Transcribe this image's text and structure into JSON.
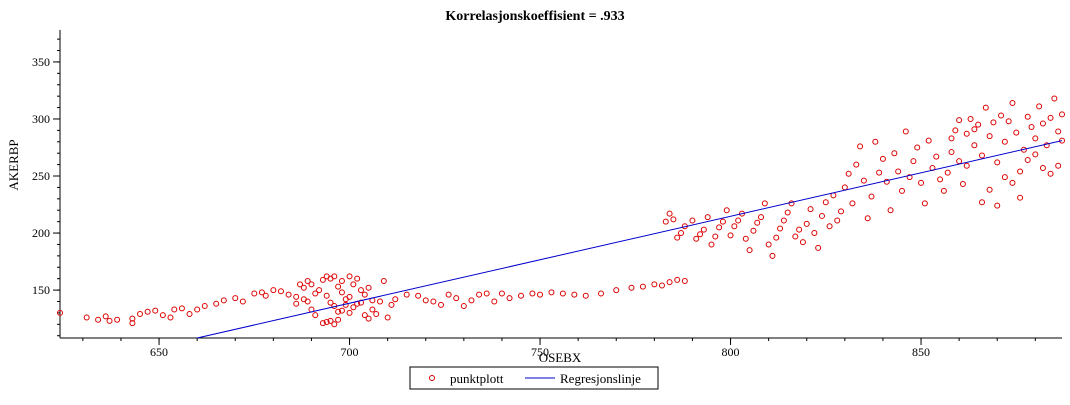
{
  "chart_data": {
    "type": "scatter",
    "title": "Korrelasjonskoeffisient = .933",
    "xlabel": "OSEBX",
    "ylabel": "AKERBP",
    "xlim": [
      624,
      887
    ],
    "ylim": [
      108,
      378
    ],
    "x_ticks": [
      650,
      700,
      750,
      800,
      850
    ],
    "y_ticks": [
      150,
      200,
      250,
      300,
      350
    ],
    "grid": false,
    "legend_position": "bottom-center",
    "colors": {
      "points": "#dd0000",
      "regression": "#0000cc",
      "axis": "#000000"
    },
    "series": [
      {
        "name": "punktplott",
        "kind": "points",
        "points": [
          [
            624,
            130
          ],
          [
            631,
            126
          ],
          [
            634,
            124
          ],
          [
            636,
            127
          ],
          [
            637,
            123
          ],
          [
            639,
            124
          ],
          [
            643,
            121
          ],
          [
            643,
            125
          ],
          [
            645,
            129
          ],
          [
            647,
            131
          ],
          [
            649,
            132
          ],
          [
            651,
            128
          ],
          [
            653,
            126
          ],
          [
            654,
            133
          ],
          [
            656,
            134
          ],
          [
            658,
            129
          ],
          [
            660,
            133
          ],
          [
            662,
            136
          ],
          [
            665,
            138
          ],
          [
            667,
            141
          ],
          [
            670,
            143
          ],
          [
            672,
            140
          ],
          [
            675,
            147
          ],
          [
            677,
            148
          ],
          [
            678,
            145
          ],
          [
            680,
            150
          ],
          [
            682,
            149
          ],
          [
            684,
            146
          ],
          [
            686,
            144
          ],
          [
            687,
            155
          ],
          [
            688,
            152
          ],
          [
            689,
            158
          ],
          [
            690,
            155
          ],
          [
            691,
            147
          ],
          [
            692,
            150
          ],
          [
            693,
            159
          ],
          [
            694,
            162
          ],
          [
            694,
            145
          ],
          [
            695,
            139
          ],
          [
            696,
            136
          ],
          [
            697,
            153
          ],
          [
            698,
            148
          ],
          [
            698,
            158
          ],
          [
            699,
            142
          ],
          [
            700,
            144
          ],
          [
            700,
            130
          ],
          [
            701,
            155
          ],
          [
            702,
            160
          ],
          [
            702,
            138
          ],
          [
            703,
            150
          ],
          [
            704,
            146
          ],
          [
            705,
            152
          ],
          [
            706,
            141
          ],
          [
            706,
            133
          ],
          [
            707,
            129
          ],
          [
            708,
            140
          ],
          [
            709,
            158
          ],
          [
            710,
            126
          ],
          [
            711,
            137
          ],
          [
            712,
            142
          ],
          [
            693,
            121
          ],
          [
            694,
            122
          ],
          [
            695,
            123
          ],
          [
            696,
            120
          ],
          [
            697,
            124
          ],
          [
            690,
            133
          ],
          [
            691,
            128
          ],
          [
            689,
            140
          ],
          [
            688,
            142
          ],
          [
            686,
            138
          ],
          [
            704,
            128
          ],
          [
            705,
            125
          ],
          [
            701,
            135
          ],
          [
            703,
            139
          ],
          [
            699,
            137
          ],
          [
            698,
            132
          ],
          [
            697,
            131
          ],
          [
            696,
            162
          ],
          [
            695,
            160
          ],
          [
            700,
            162
          ],
          [
            715,
            146
          ],
          [
            718,
            145
          ],
          [
            720,
            141
          ],
          [
            722,
            140
          ],
          [
            724,
            137
          ],
          [
            726,
            146
          ],
          [
            728,
            143
          ],
          [
            730,
            136
          ],
          [
            732,
            141
          ],
          [
            734,
            146
          ],
          [
            736,
            147
          ],
          [
            738,
            140
          ],
          [
            740,
            147
          ],
          [
            742,
            143
          ],
          [
            745,
            145
          ],
          [
            748,
            147
          ],
          [
            750,
            146
          ],
          [
            753,
            148
          ],
          [
            756,
            147
          ],
          [
            759,
            146
          ],
          [
            762,
            145
          ],
          [
            766,
            147
          ],
          [
            770,
            150
          ],
          [
            774,
            152
          ],
          [
            777,
            153
          ],
          [
            780,
            155
          ],
          [
            782,
            154
          ],
          [
            784,
            157
          ],
          [
            786,
            159
          ],
          [
            788,
            158
          ],
          [
            783,
            210
          ],
          [
            784,
            217
          ],
          [
            785,
            212
          ],
          [
            786,
            196
          ],
          [
            787,
            200
          ],
          [
            788,
            206
          ],
          [
            790,
            211
          ],
          [
            791,
            195
          ],
          [
            792,
            199
          ],
          [
            793,
            203
          ],
          [
            794,
            214
          ],
          [
            795,
            190
          ],
          [
            796,
            197
          ],
          [
            797,
            205
          ],
          [
            798,
            210
          ],
          [
            799,
            220
          ],
          [
            800,
            198
          ],
          [
            801,
            206
          ],
          [
            802,
            211
          ],
          [
            803,
            217
          ],
          [
            804,
            195
          ],
          [
            805,
            185
          ],
          [
            806,
            202
          ],
          [
            807,
            209
          ],
          [
            808,
            214
          ],
          [
            809,
            226
          ],
          [
            810,
            190
          ],
          [
            811,
            180
          ],
          [
            812,
            196
          ],
          [
            813,
            204
          ],
          [
            814,
            211
          ],
          [
            815,
            218
          ],
          [
            816,
            226
          ],
          [
            817,
            197
          ],
          [
            818,
            203
          ],
          [
            819,
            192
          ],
          [
            820,
            208
          ],
          [
            821,
            221
          ],
          [
            822,
            200
          ],
          [
            823,
            187
          ],
          [
            824,
            215
          ],
          [
            825,
            227
          ],
          [
            826,
            206
          ],
          [
            827,
            233
          ],
          [
            828,
            211
          ],
          [
            829,
            219
          ],
          [
            830,
            240
          ],
          [
            831,
            252
          ],
          [
            832,
            226
          ],
          [
            833,
            260
          ],
          [
            834,
            276
          ],
          [
            835,
            246
          ],
          [
            836,
            213
          ],
          [
            837,
            232
          ],
          [
            838,
            280
          ],
          [
            839,
            253
          ],
          [
            840,
            265
          ],
          [
            841,
            245
          ],
          [
            842,
            220
          ],
          [
            843,
            270
          ],
          [
            844,
            254
          ],
          [
            845,
            237
          ],
          [
            846,
            289
          ],
          [
            847,
            249
          ],
          [
            848,
            263
          ],
          [
            849,
            275
          ],
          [
            850,
            244
          ],
          [
            851,
            226
          ],
          [
            852,
            281
          ],
          [
            853,
            257
          ],
          [
            854,
            267
          ],
          [
            855,
            247
          ],
          [
            856,
            237
          ],
          [
            857,
            253
          ],
          [
            858,
            271
          ],
          [
            859,
            290
          ],
          [
            860,
            263
          ],
          [
            861,
            243
          ],
          [
            862,
            259
          ],
          [
            863,
            300
          ],
          [
            864,
            277
          ],
          [
            865,
            295
          ],
          [
            866,
            268
          ],
          [
            867,
            310
          ],
          [
            868,
            285
          ],
          [
            869,
            297
          ],
          [
            870,
            262
          ],
          [
            871,
            303
          ],
          [
            872,
            280
          ],
          [
            873,
            298
          ],
          [
            874,
            314
          ],
          [
            875,
            288
          ],
          [
            876,
            254
          ],
          [
            877,
            273
          ],
          [
            878,
            302
          ],
          [
            879,
            293
          ],
          [
            880,
            283
          ],
          [
            881,
            311
          ],
          [
            882,
            296
          ],
          [
            883,
            277
          ],
          [
            884,
            301
          ],
          [
            885,
            318
          ],
          [
            886,
            289
          ],
          [
            887,
            304
          ],
          [
            866,
            227
          ],
          [
            868,
            238
          ],
          [
            870,
            224
          ],
          [
            872,
            249
          ],
          [
            874,
            244
          ],
          [
            876,
            231
          ],
          [
            862,
            287
          ],
          [
            864,
            291
          ],
          [
            860,
            299
          ],
          [
            858,
            283
          ],
          [
            878,
            264
          ],
          [
            880,
            269
          ],
          [
            882,
            257
          ],
          [
            884,
            252
          ],
          [
            886,
            259
          ],
          [
            887,
            281
          ]
        ]
      },
      {
        "name": "Regresjonslinje",
        "kind": "line",
        "points": [
          [
            660,
            108
          ],
          [
            887,
            281
          ]
        ]
      }
    ]
  }
}
